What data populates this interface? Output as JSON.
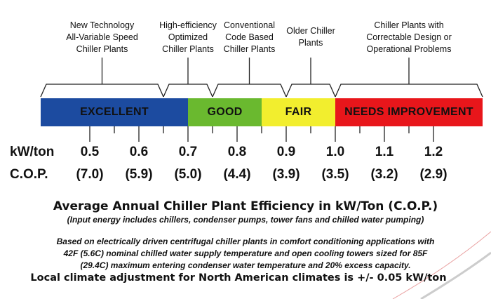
{
  "categories": [
    {
      "label_lines": [
        "New Technology",
        "All-Variable Speed",
        "Chiller Plants"
      ],
      "range": [
        0.4,
        0.65
      ]
    },
    {
      "label_lines": [
        "High-efficiency",
        "Optimized",
        "Chiller Plants"
      ],
      "range": [
        0.65,
        0.75
      ]
    },
    {
      "label_lines": [
        "Conventional",
        "Code Based",
        "Chiller Plants"
      ],
      "range": [
        0.75,
        0.9
      ]
    },
    {
      "label_lines": [
        "Older Chiller",
        "Plants"
      ],
      "range": [
        0.9,
        1.0
      ]
    },
    {
      "label_lines": [
        "Chiller Plants with",
        "Correctable Design or",
        "Operational Problems"
      ],
      "range": [
        1.0,
        1.3
      ]
    }
  ],
  "ratings": [
    {
      "label": "EXCELLENT",
      "range": [
        0.4,
        0.7
      ],
      "color": "#1c4ba0"
    },
    {
      "label": "GOOD",
      "range": [
        0.7,
        0.85
      ],
      "color": "#6ab92f"
    },
    {
      "label": "FAIR",
      "range": [
        0.85,
        1.0
      ],
      "color": "#f2ee2e"
    },
    {
      "label": "NEEDS IMPROVEMENT",
      "range": [
        1.0,
        1.3
      ],
      "color": "#e8161b"
    }
  ],
  "scale": {
    "kw_label": "kW/ton",
    "cop_label": "C.O.P.",
    "kw_values": [
      "0.5",
      "0.6",
      "0.7",
      "0.8",
      "0.9",
      "1.0",
      "1.1",
      "1.2"
    ],
    "cop_values": [
      "(7.0)",
      "(5.9)",
      "(5.0)",
      "(4.4)",
      "(3.9)",
      "(3.5)",
      "(3.2)",
      "(2.9)"
    ]
  },
  "title": "Average Annual Chiller Plant Efficiency in kW/Ton (C.O.P.)",
  "subtitle": "(Input energy includes chillers, condenser pumps, tower fans and chilled water pumping)",
  "notes": [
    "Based on electrically driven centrifugal chiller plants in comfort conditioning applications with",
    "42F (5.6C) nominal chilled water supply temperature and open cooling towers sized for 85F",
    "(29.4C) maximum entering condenser water temperature and 20% excess capacity."
  ],
  "adjustment": "Local climate adjustment for North American climates is +/- 0.05 kW/ton"
}
